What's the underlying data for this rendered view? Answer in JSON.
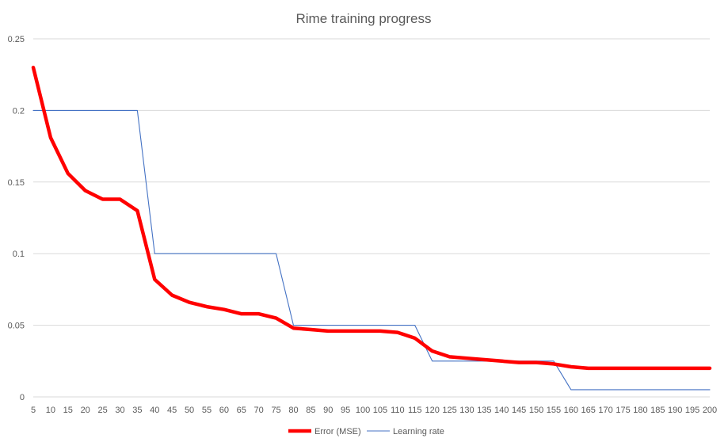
{
  "chart_data": {
    "type": "line",
    "title": "Rime training progress",
    "xlabel": "",
    "ylabel": "",
    "x": [
      5,
      10,
      15,
      20,
      25,
      30,
      35,
      40,
      45,
      50,
      55,
      60,
      65,
      70,
      75,
      80,
      85,
      90,
      95,
      100,
      105,
      110,
      115,
      120,
      125,
      130,
      135,
      140,
      145,
      150,
      155,
      160,
      165,
      170,
      175,
      180,
      185,
      190,
      195,
      200
    ],
    "ylim": [
      0,
      0.25
    ],
    "yticks": [
      "0",
      "0.05",
      "0.1",
      "0.15",
      "0.2",
      "0.25"
    ],
    "grid": true,
    "legend_position": "bottom",
    "series": [
      {
        "name": "Error (MSE)",
        "color": "#ff0000",
        "values": [
          0.23,
          0.181,
          0.156,
          0.144,
          0.138,
          0.138,
          0.13,
          0.082,
          0.071,
          0.066,
          0.063,
          0.061,
          0.058,
          0.058,
          0.055,
          0.048,
          0.047,
          0.046,
          0.046,
          0.046,
          0.046,
          0.045,
          0.041,
          0.032,
          0.028,
          0.027,
          0.026,
          0.025,
          0.024,
          0.024,
          0.023,
          0.021,
          0.02,
          0.02,
          0.02,
          0.02,
          0.02,
          0.02,
          0.02,
          0.02
        ]
      },
      {
        "name": "Learning rate",
        "color": "#4472c4",
        "values": [
          0.2,
          0.2,
          0.2,
          0.2,
          0.2,
          0.2,
          0.2,
          0.1,
          0.1,
          0.1,
          0.1,
          0.1,
          0.1,
          0.1,
          0.1,
          0.05,
          0.05,
          0.05,
          0.05,
          0.05,
          0.05,
          0.05,
          0.05,
          0.025,
          0.025,
          0.025,
          0.025,
          0.025,
          0.025,
          0.025,
          0.025,
          0.005,
          0.005,
          0.005,
          0.005,
          0.005,
          0.005,
          0.005,
          0.005,
          0.005
        ]
      }
    ]
  }
}
